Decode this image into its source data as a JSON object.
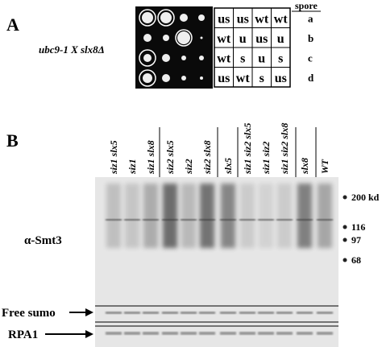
{
  "panel_a": {
    "label": "A",
    "cross": "ubc9-1 X slx8Δ",
    "spore_header": "spore",
    "spores": [
      "a",
      "b",
      "c",
      "d"
    ],
    "genotypes": [
      [
        "us",
        "us",
        "wt",
        "wt"
      ],
      [
        "wt",
        "u",
        "us",
        "u"
      ],
      [
        "wt",
        "s",
        "u",
        "s"
      ],
      [
        "us",
        "wt",
        "s",
        "us"
      ]
    ]
  },
  "panel_b": {
    "label": "B",
    "lanes": [
      "siz1 slx5",
      "siz1",
      "siz1 slx8",
      "siz2 slx5",
      "siz2",
      "siz2 slx8",
      "slx5",
      "siz1 siz2 slx5",
      "siz1 siz2",
      "siz1 siz2 slx8",
      "slx8",
      "WT"
    ],
    "markers": [
      "200 kd",
      "116",
      "97",
      "68"
    ],
    "antibody": "α-Smt3",
    "free_sumo": "Free sumo",
    "rpa1": "RPA1"
  }
}
